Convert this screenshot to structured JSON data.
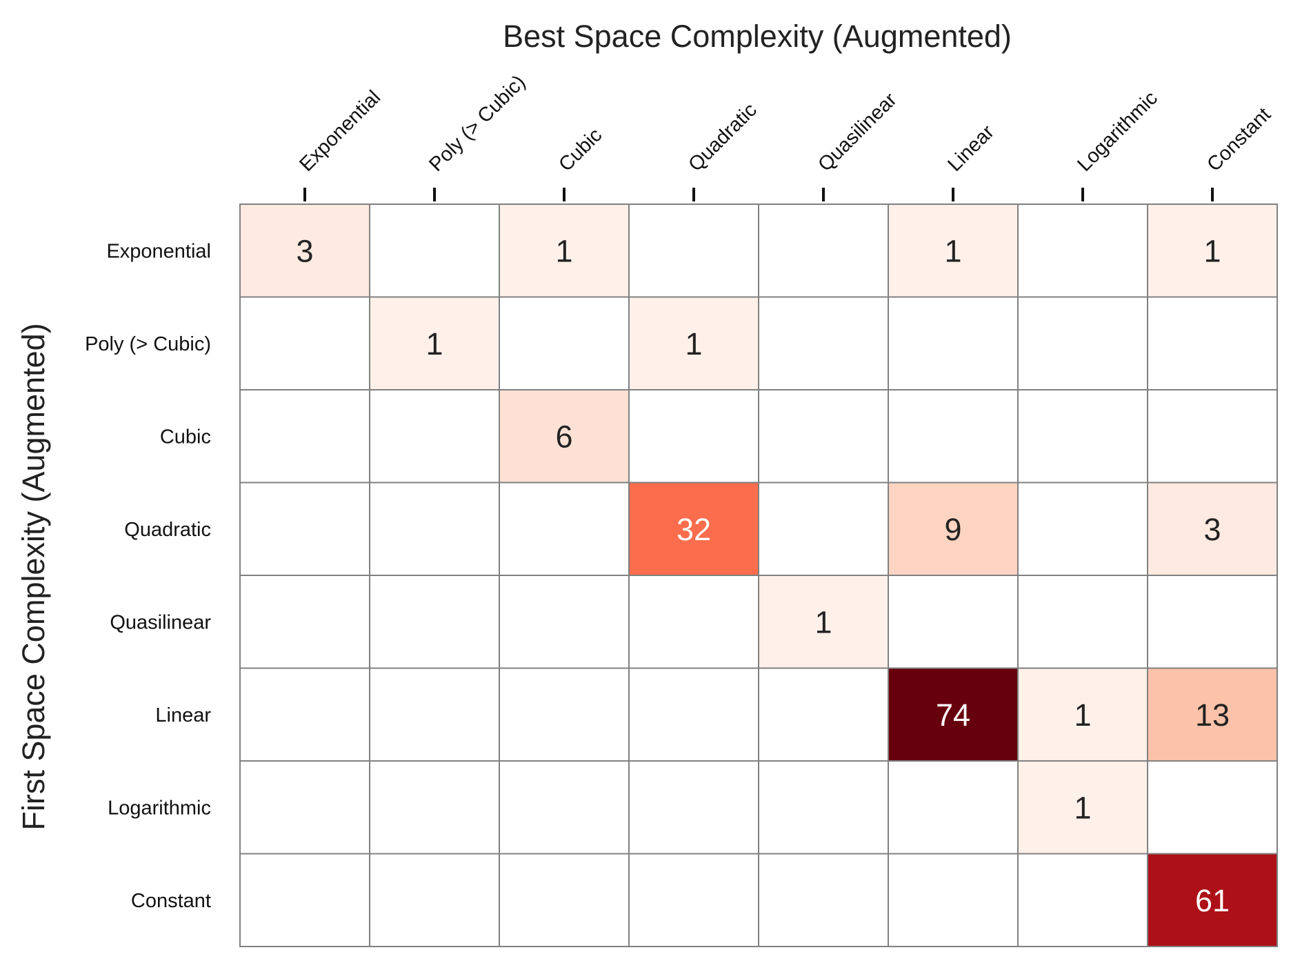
{
  "chart_data": {
    "type": "heatmap",
    "title": "Best Space Complexity (Augmented)",
    "ylabel": "First Space Complexity (Augmented)",
    "xlabel": "",
    "x_categories": [
      "Exponential",
      "Poly (> Cubic)",
      "Cubic",
      "Quadratic",
      "Quasilinear",
      "Linear",
      "Logarithmic",
      "Constant"
    ],
    "y_categories": [
      "Exponential",
      "Poly (> Cubic)",
      "Cubic",
      "Quadratic",
      "Quasilinear",
      "Linear",
      "Logarithmic",
      "Constant"
    ],
    "values": [
      [
        3,
        null,
        1,
        null,
        null,
        1,
        null,
        1
      ],
      [
        null,
        1,
        null,
        1,
        null,
        null,
        null,
        null
      ],
      [
        null,
        null,
        6,
        null,
        null,
        null,
        null,
        null
      ],
      [
        null,
        null,
        null,
        32,
        null,
        9,
        null,
        3
      ],
      [
        null,
        null,
        null,
        null,
        1,
        null,
        null,
        null
      ],
      [
        null,
        null,
        null,
        null,
        null,
        74,
        1,
        13
      ],
      [
        null,
        null,
        null,
        null,
        null,
        null,
        1,
        null
      ],
      [
        null,
        null,
        null,
        null,
        null,
        null,
        null,
        61
      ]
    ],
    "x_axis_position": "top",
    "colorscale": "Reds",
    "empty_cell_color": "#ffffff",
    "grid_color": "#808080",
    "colorbar": false
  }
}
